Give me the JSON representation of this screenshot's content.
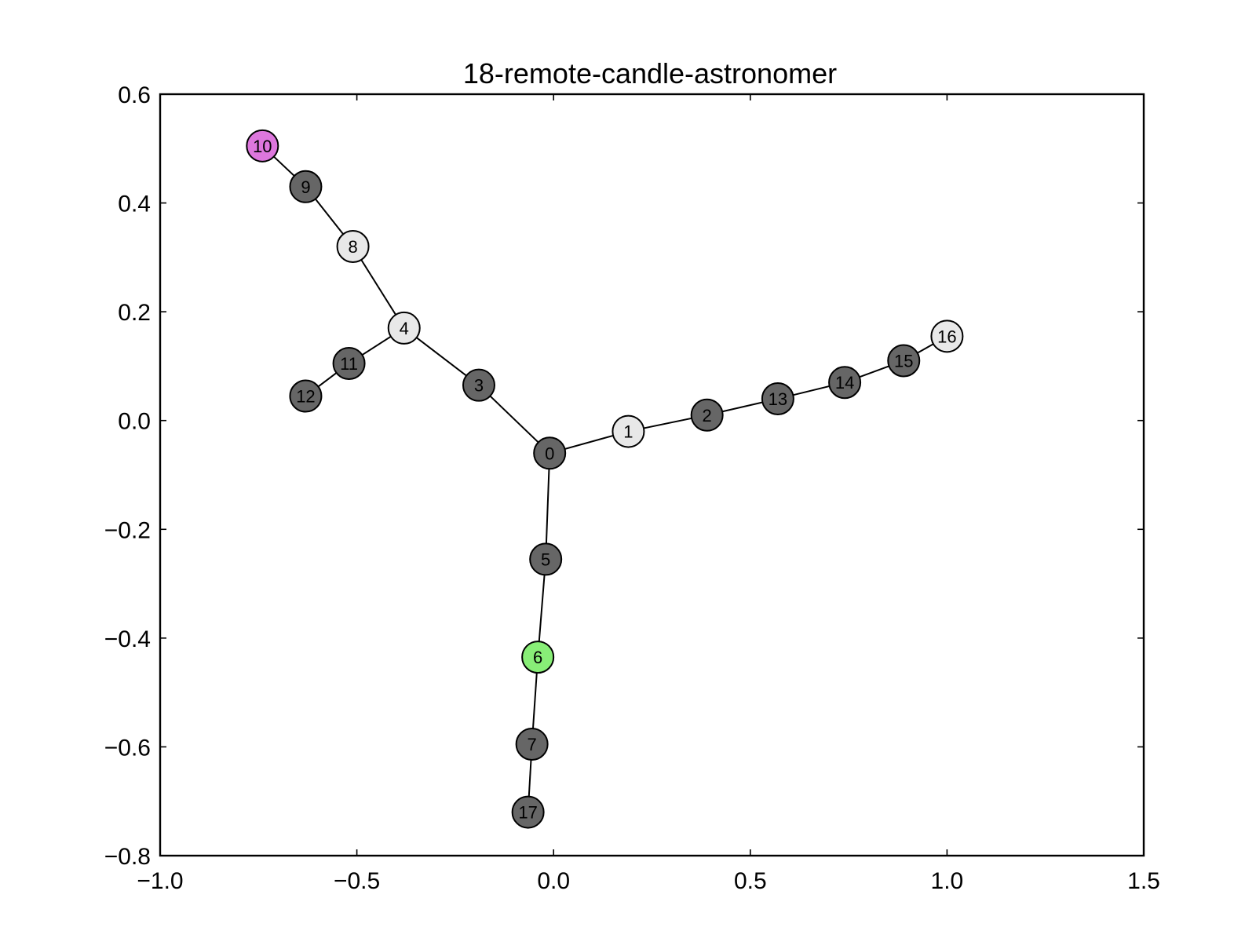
{
  "chart_data": {
    "type": "graph",
    "title": "18-remote-candle-astronomer",
    "xlim": [
      -1.0,
      1.5
    ],
    "ylim": [
      -0.8,
      0.6
    ],
    "xticks": [
      {
        "value": -1.0,
        "label": "−1.0"
      },
      {
        "value": -0.5,
        "label": "−0.5"
      },
      {
        "value": 0.0,
        "label": "0.0"
      },
      {
        "value": 0.5,
        "label": "0.5"
      },
      {
        "value": 1.0,
        "label": "1.0"
      },
      {
        "value": 1.5,
        "label": "1.5"
      }
    ],
    "yticks": [
      {
        "value": 0.6,
        "label": "0.6"
      },
      {
        "value": 0.4,
        "label": "0.4"
      },
      {
        "value": 0.2,
        "label": "0.2"
      },
      {
        "value": 0.0,
        "label": "0.0"
      },
      {
        "value": -0.2,
        "label": "−0.2"
      },
      {
        "value": -0.4,
        "label": "−0.4"
      },
      {
        "value": -0.6,
        "label": "−0.6"
      },
      {
        "value": -0.8,
        "label": "−0.8"
      }
    ],
    "grid": false,
    "colors": {
      "dark": "#666666",
      "light": "#e8e8e8",
      "magenta": "#dd77dd",
      "green": "#88ee77"
    },
    "nodes": [
      {
        "id": "0",
        "x": -0.01,
        "y": -0.06,
        "color": "dark"
      },
      {
        "id": "1",
        "x": 0.19,
        "y": -0.02,
        "color": "light"
      },
      {
        "id": "2",
        "x": 0.39,
        "y": 0.01,
        "color": "dark"
      },
      {
        "id": "3",
        "x": -0.19,
        "y": 0.065,
        "color": "dark"
      },
      {
        "id": "4",
        "x": -0.38,
        "y": 0.17,
        "color": "light"
      },
      {
        "id": "5",
        "x": -0.02,
        "y": -0.255,
        "color": "dark"
      },
      {
        "id": "6",
        "x": -0.04,
        "y": -0.435,
        "color": "green"
      },
      {
        "id": "7",
        "x": -0.055,
        "y": -0.595,
        "color": "dark"
      },
      {
        "id": "8",
        "x": -0.51,
        "y": 0.32,
        "color": "light"
      },
      {
        "id": "9",
        "x": -0.63,
        "y": 0.43,
        "color": "dark"
      },
      {
        "id": "10",
        "x": -0.74,
        "y": 0.505,
        "color": "magenta"
      },
      {
        "id": "11",
        "x": -0.52,
        "y": 0.105,
        "color": "dark"
      },
      {
        "id": "12",
        "x": -0.63,
        "y": 0.045,
        "color": "dark"
      },
      {
        "id": "13",
        "x": 0.57,
        "y": 0.04,
        "color": "dark"
      },
      {
        "id": "14",
        "x": 0.74,
        "y": 0.07,
        "color": "dark"
      },
      {
        "id": "15",
        "x": 0.89,
        "y": 0.11,
        "color": "dark"
      },
      {
        "id": "16",
        "x": 1.0,
        "y": 0.155,
        "color": "light"
      },
      {
        "id": "17",
        "x": -0.065,
        "y": -0.72,
        "color": "dark"
      }
    ],
    "edges": [
      [
        "10",
        "9"
      ],
      [
        "9",
        "8"
      ],
      [
        "8",
        "4"
      ],
      [
        "4",
        "11"
      ],
      [
        "11",
        "12"
      ],
      [
        "4",
        "3"
      ],
      [
        "3",
        "0"
      ],
      [
        "0",
        "1"
      ],
      [
        "1",
        "2"
      ],
      [
        "2",
        "13"
      ],
      [
        "13",
        "14"
      ],
      [
        "14",
        "15"
      ],
      [
        "15",
        "16"
      ],
      [
        "0",
        "5"
      ],
      [
        "5",
        "6"
      ],
      [
        "6",
        "7"
      ],
      [
        "7",
        "17"
      ]
    ]
  }
}
